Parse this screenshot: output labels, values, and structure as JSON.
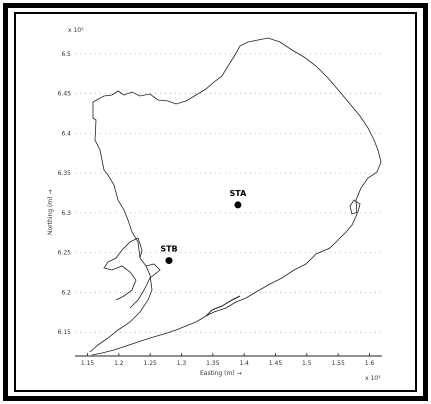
{
  "figure": {
    "y_exponent_label": "x 10⁵",
    "x_exponent_label": "x 10⁵",
    "y_axis_title": "Northing (m) →",
    "x_axis_title": "Easting (m) →"
  },
  "chart_data": {
    "type": "map",
    "y_ticks": [
      "6.5",
      "6.45",
      "6.4",
      "6.35",
      "6.3",
      "6.25",
      "6.2",
      "6.15"
    ],
    "x_ticks": [
      "1.15",
      "1.2",
      "1.25",
      "1.3",
      "1.35",
      "1.4",
      "1.45",
      "1.5",
      "1.55",
      "1.6"
    ],
    "stations": [
      {
        "name": "STA",
        "easting": 1.39,
        "northing": 6.31
      },
      {
        "name": "STB",
        "easting": 1.28,
        "northing": 6.24
      }
    ],
    "xlim": [
      1.13,
      1.62
    ],
    "ylim": [
      6.12,
      6.53
    ]
  },
  "colors": {
    "frame": "#000000",
    "coast": "#222222",
    "grid": "#888888",
    "station": "#000000"
  }
}
